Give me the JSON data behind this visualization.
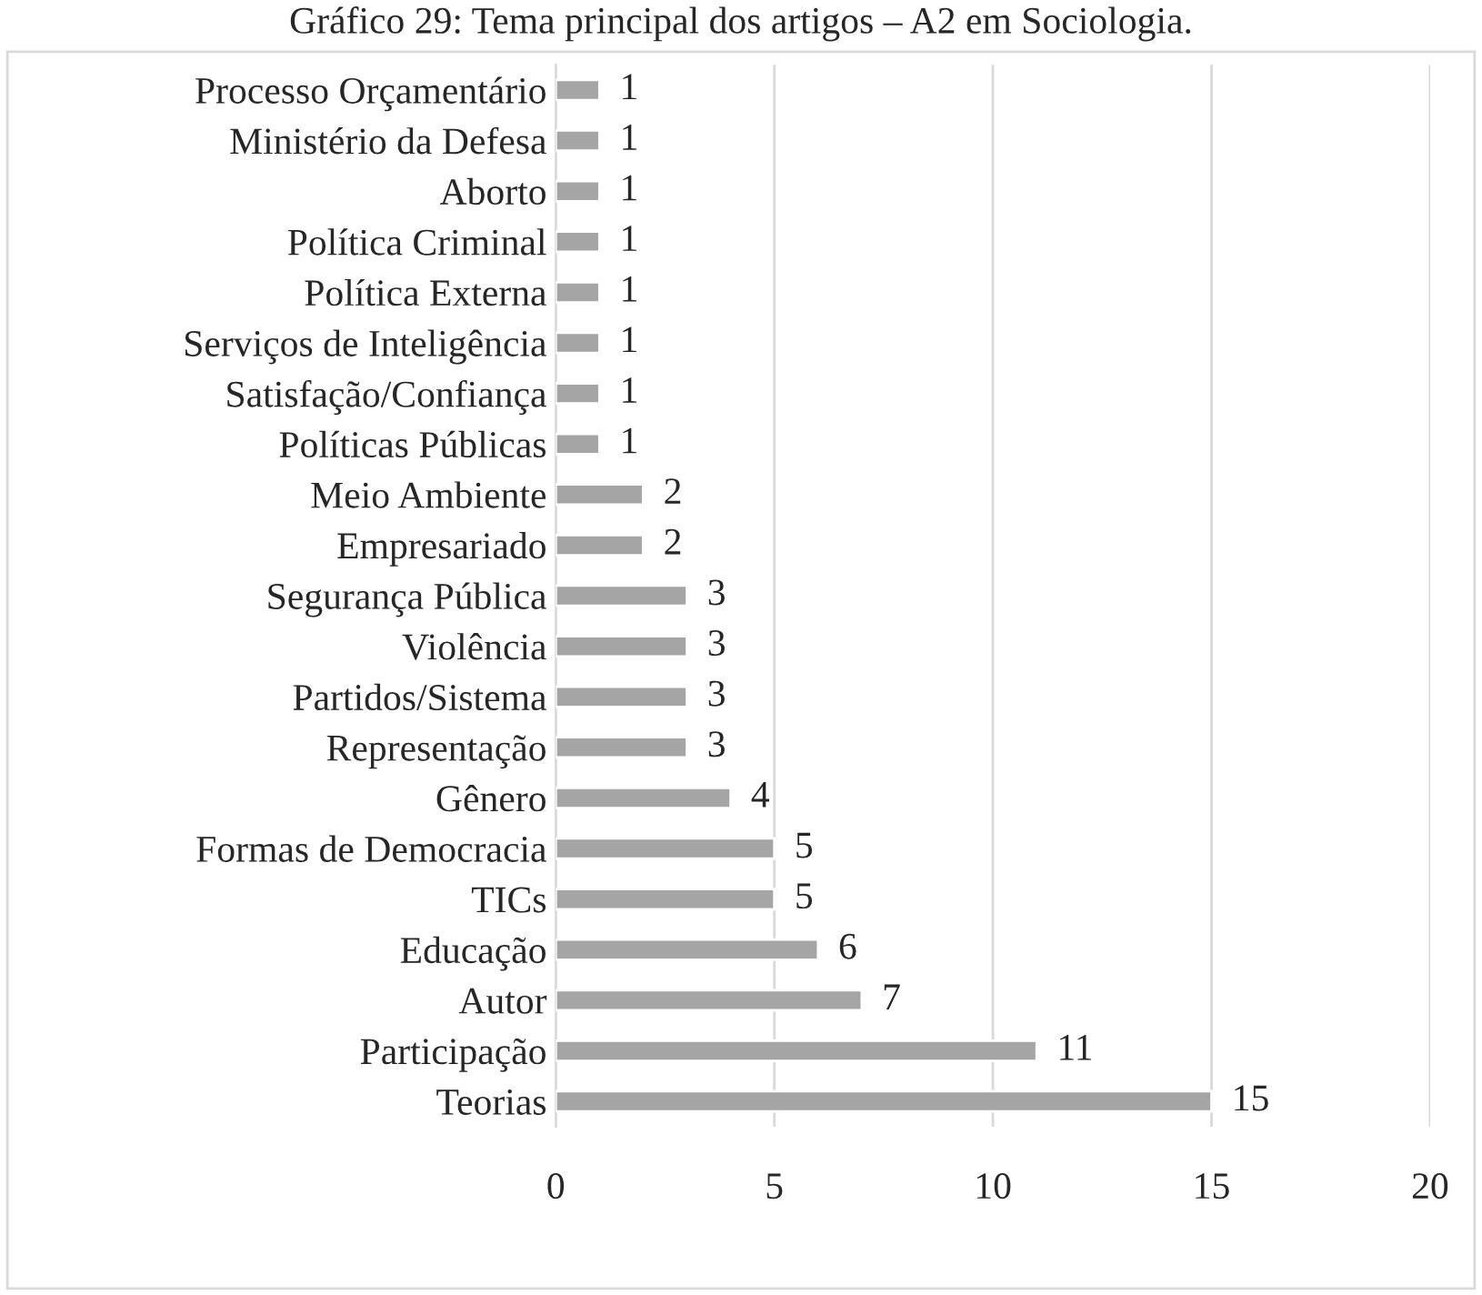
{
  "chart_data": {
    "type": "bar",
    "orientation": "horizontal",
    "title": "Gráfico 29: Tema principal dos artigos – A2 em Sociologia.",
    "categories": [
      "Processo Orçamentário",
      "Ministério da Defesa",
      "Aborto",
      "Política Criminal",
      "Política Externa",
      "Serviços de Inteligência",
      "Satisfação/Confiança",
      "Políticas Públicas",
      "Meio Ambiente",
      "Empresariado",
      "Segurança Pública",
      "Violência",
      "Partidos/Sistema",
      "Representação",
      "Gênero",
      "Formas de Democracia",
      "TICs",
      "Educação",
      "Autor",
      "Participação",
      "Teorias"
    ],
    "values": [
      1,
      1,
      1,
      1,
      1,
      1,
      1,
      1,
      2,
      2,
      3,
      3,
      3,
      3,
      4,
      5,
      5,
      6,
      7,
      11,
      15
    ],
    "color": "#a5a5a5",
    "xlim": [
      0,
      20
    ],
    "xticks": [
      0,
      5,
      10,
      15,
      20
    ],
    "grid": "x",
    "data_labels": true
  }
}
